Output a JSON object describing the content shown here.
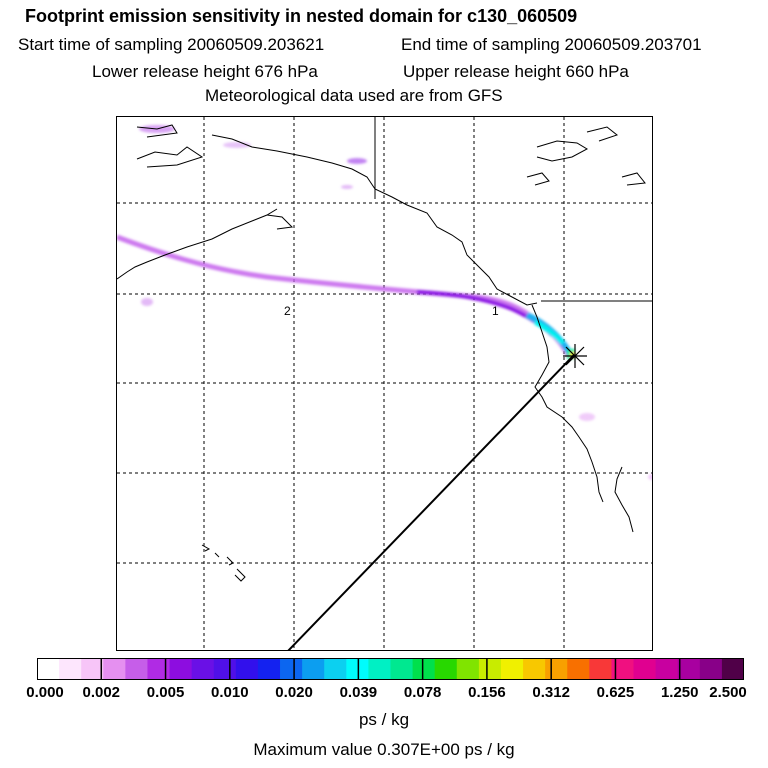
{
  "title": "Footprint emission sensitivity in nested domain for c130_060509",
  "start_time": "Start time of sampling 20060509.203621",
  "end_time": "End time of sampling 20060509.203701",
  "lower_height": "Lower release height  676 hPa",
  "upper_height": "Upper release height  660 hPa",
  "met_data": "Meteorological data used are from GFS",
  "map": {
    "labels": [
      "2",
      "1"
    ]
  },
  "colorbar": {
    "colors": [
      "#ffffff",
      "#fde6fd",
      "#f7c5f8",
      "#e590f0",
      "#c65ee9",
      "#b02be4",
      "#8d0de0",
      "#6a10e6",
      "#5010e8",
      "#3210ec",
      "#1422f0",
      "#0c66f0",
      "#0c9ef0",
      "#0cd0f0",
      "#00fcfc",
      "#00f0c4",
      "#00e890",
      "#00e04c",
      "#28d800",
      "#80e400",
      "#c8ec00",
      "#f0f000",
      "#f8c800",
      "#f8a000",
      "#f87000",
      "#f83838",
      "#f01080",
      "#e00090",
      "#c800a0",
      "#a800a0",
      "#880088",
      "#500048"
    ],
    "tick_labels": [
      "0.000",
      "0.002",
      "0.005",
      "0.010",
      "0.020",
      "0.039",
      "0.078",
      "0.156",
      "0.312",
      "0.625",
      "1.250",
      "2.500"
    ],
    "units": "ps / kg"
  },
  "max_value": "Maximum value  0.307E+00 ps / kg"
}
